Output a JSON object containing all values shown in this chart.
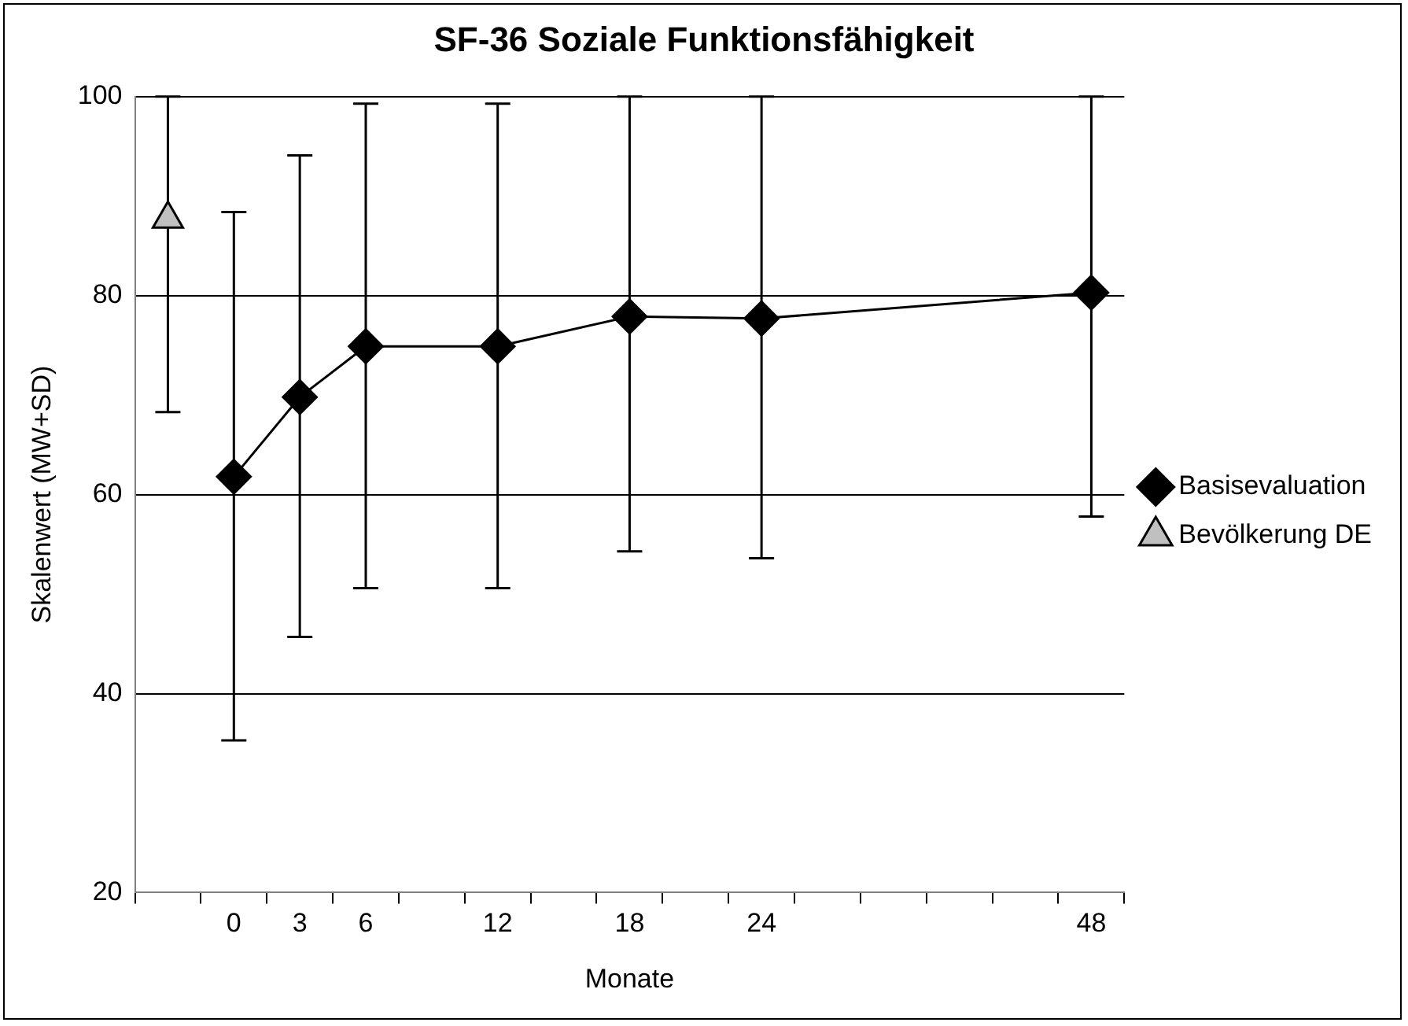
{
  "chart_data": {
    "type": "line",
    "title": "SF-36 Soziale Funktionsfähigkeit",
    "xlabel": "Monate",
    "ylabel": "Skalenwert (MW+SD)",
    "categories": [
      null,
      "0",
      "3",
      "6",
      null,
      "12",
      null,
      "18",
      null,
      "24",
      null,
      null,
      null,
      null,
      "48"
    ],
    "series": [
      {
        "name": "Basisevaluation",
        "type": "line",
        "color": "#000000",
        "marker": "diamond",
        "line_style": "solid",
        "values": [
          null,
          61.8,
          69.8,
          74.9,
          null,
          74.9,
          null,
          77.9,
          null,
          77.7,
          null,
          null,
          null,
          null,
          80.3
        ],
        "errors": [
          null,
          [
            35.3,
            88.4
          ],
          [
            45.7,
            94.1
          ],
          [
            50.6,
            99.3
          ],
          null,
          [
            50.6,
            99.3
          ],
          null,
          [
            54.3,
            100
          ],
          null,
          [
            53.6,
            100
          ],
          null,
          null,
          null,
          null,
          [
            57.8,
            100
          ]
        ]
      },
      {
        "name": "Bevölkerung DE",
        "type": "scatter",
        "color": "#c0c0c0",
        "marker": "triangle",
        "values": [
          87.7,
          null,
          null,
          null,
          null,
          null,
          null,
          null,
          null,
          null,
          null,
          null,
          null,
          null,
          null
        ],
        "errors": [
          [
            68.3,
            100
          ],
          null,
          null,
          null,
          null,
          null,
          null,
          null,
          null,
          null,
          null,
          null,
          null,
          null,
          null
        ]
      }
    ],
    "ylim": [
      20,
      100
    ],
    "yticks": [
      20,
      40,
      60,
      80,
      100
    ],
    "grid": "y",
    "legend": "right"
  }
}
